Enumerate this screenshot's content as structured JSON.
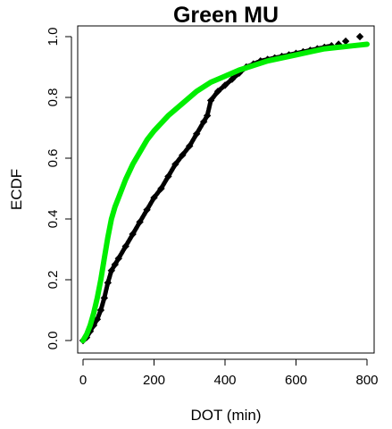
{
  "chart_data": {
    "type": "scatter",
    "title": "Green MU",
    "xlabel": "DOT (min)",
    "ylabel": "ECDF",
    "xlim": [
      0,
      800
    ],
    "ylim": [
      0,
      1.0
    ],
    "xticks": [
      "0",
      "200",
      "400",
      "600",
      "800"
    ],
    "yticks": [
      "0.0",
      "0.2",
      "0.4",
      "0.6",
      "0.8",
      "1.0"
    ],
    "grid": false,
    "legend": "none",
    "series": [
      {
        "color": "#000000",
        "marker": "diamond",
        "x": [
          0,
          10,
          20,
          30,
          40,
          50,
          60,
          70,
          80,
          90,
          100,
          120,
          140,
          160,
          180,
          200,
          220,
          240,
          260,
          280,
          300,
          320,
          340,
          350,
          360,
          380,
          400,
          420,
          440,
          460,
          480,
          500,
          520,
          540,
          560,
          580,
          600,
          620,
          640,
          660,
          680,
          700,
          720,
          740,
          780
        ],
        "y": [
          0.0,
          0.01,
          0.03,
          0.05,
          0.07,
          0.1,
          0.14,
          0.19,
          0.23,
          0.25,
          0.27,
          0.31,
          0.35,
          0.39,
          0.43,
          0.47,
          0.5,
          0.54,
          0.58,
          0.61,
          0.64,
          0.68,
          0.72,
          0.74,
          0.79,
          0.82,
          0.84,
          0.86,
          0.88,
          0.9,
          0.91,
          0.92,
          0.925,
          0.93,
          0.935,
          0.94,
          0.945,
          0.95,
          0.955,
          0.96,
          0.965,
          0.97,
          0.975,
          0.985,
          1.0
        ]
      },
      {
        "color": "#00ee00",
        "marker": "line",
        "x": [
          0,
          10,
          20,
          30,
          40,
          50,
          60,
          70,
          80,
          90,
          100,
          120,
          140,
          160,
          180,
          200,
          240,
          280,
          320,
          360,
          400,
          440,
          480,
          520,
          560,
          600,
          640,
          680,
          720,
          760,
          800
        ],
        "y": [
          0.0,
          0.02,
          0.05,
          0.09,
          0.14,
          0.2,
          0.27,
          0.34,
          0.4,
          0.44,
          0.47,
          0.53,
          0.58,
          0.62,
          0.66,
          0.69,
          0.74,
          0.78,
          0.82,
          0.85,
          0.87,
          0.89,
          0.905,
          0.92,
          0.93,
          0.94,
          0.95,
          0.96,
          0.965,
          0.97,
          0.975
        ]
      }
    ]
  }
}
